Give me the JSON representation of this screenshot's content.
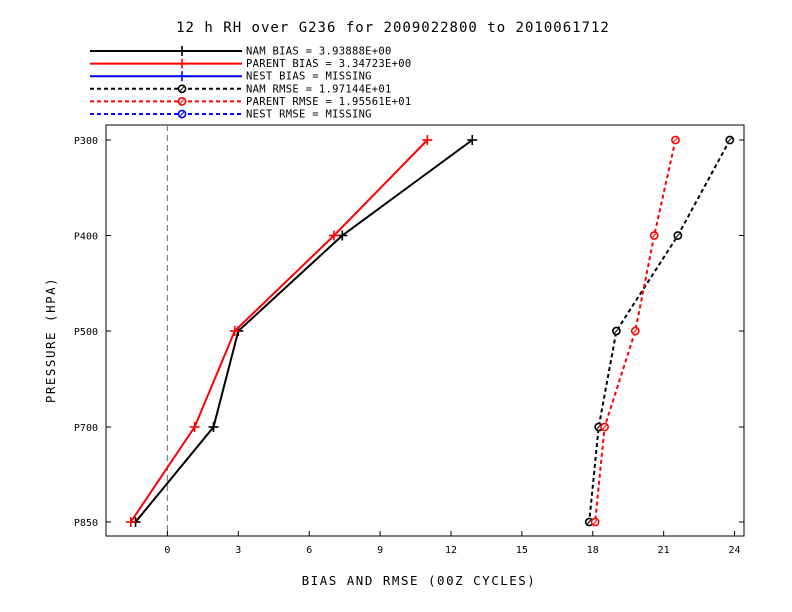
{
  "title": "12 h RH over G236 for 2009022800 to 2010061712",
  "legend": [
    {
      "label": "NAM BIAS =  3.93888E+00",
      "color": "#000000",
      "dash": false,
      "marker": "plus"
    },
    {
      "label": "PARENT BIAS =  3.34723E+00",
      "color": "#ff0000",
      "dash": false,
      "marker": "plus"
    },
    {
      "label": "NEST BIAS = MISSING",
      "color": "#0000ff",
      "dash": false,
      "marker": "plus"
    },
    {
      "label": "NAM RMSE =  1.97144E+01",
      "color": "#000000",
      "dash": true,
      "marker": "circle"
    },
    {
      "label": "PARENT RMSE =  1.95561E+01",
      "color": "#ff0000",
      "dash": true,
      "marker": "circle"
    },
    {
      "label": "NEST RMSE = MISSING",
      "color": "#0000ff",
      "dash": true,
      "marker": "circle"
    }
  ],
  "chart_data": {
    "type": "line",
    "title": "12 h RH over G236 for 2009022800 to 2010061712",
    "xlabel": "BIAS AND RMSE (00Z CYCLES)",
    "ylabel": "PRESSURE (HPA)",
    "xlim": [
      -2.6,
      24.4
    ],
    "x_ticks": [
      0,
      3,
      6,
      9,
      12,
      15,
      18,
      21,
      24
    ],
    "y_categories": [
      "P300",
      "P400",
      "P500",
      "P700",
      "P850"
    ],
    "zero_line": {
      "x": 0,
      "style": "dashed",
      "color": "#808080"
    },
    "series": [
      {
        "name": "NAM BIAS",
        "color": "#000000",
        "dash": false,
        "marker": "plus",
        "points": [
          {
            "level": "P300",
            "x": 12.9
          },
          {
            "level": "P400",
            "x": 7.4
          },
          {
            "level": "P500",
            "x": 3.0
          },
          {
            "level": "P700",
            "x": 1.95
          },
          {
            "level": "P850",
            "x": -1.35
          }
        ]
      },
      {
        "name": "PARENT BIAS",
        "color": "#ff0000",
        "dash": false,
        "marker": "plus",
        "points": [
          {
            "level": "P300",
            "x": 11.0
          },
          {
            "level": "P400",
            "x": 7.05
          },
          {
            "level": "P500",
            "x": 2.85
          },
          {
            "level": "P700",
            "x": 1.15
          },
          {
            "level": "P850",
            "x": -1.55
          }
        ]
      },
      {
        "name": "NAM RMSE",
        "color": "#000000",
        "dash": true,
        "marker": "circle",
        "points": [
          {
            "level": "P300",
            "x": 23.8
          },
          {
            "level": "P400",
            "x": 21.6
          },
          {
            "level": "P500",
            "x": 19.0
          },
          {
            "level": "P700",
            "x": 18.25
          },
          {
            "level": "P850",
            "x": 17.85
          }
        ]
      },
      {
        "name": "PARENT RMSE",
        "color": "#ff0000",
        "dash": true,
        "marker": "circle",
        "points": [
          {
            "level": "P300",
            "x": 21.5
          },
          {
            "level": "P400",
            "x": 20.6
          },
          {
            "level": "P500",
            "x": 19.8
          },
          {
            "level": "P700",
            "x": 18.5
          },
          {
            "level": "P850",
            "x": 18.1
          }
        ]
      }
    ]
  }
}
